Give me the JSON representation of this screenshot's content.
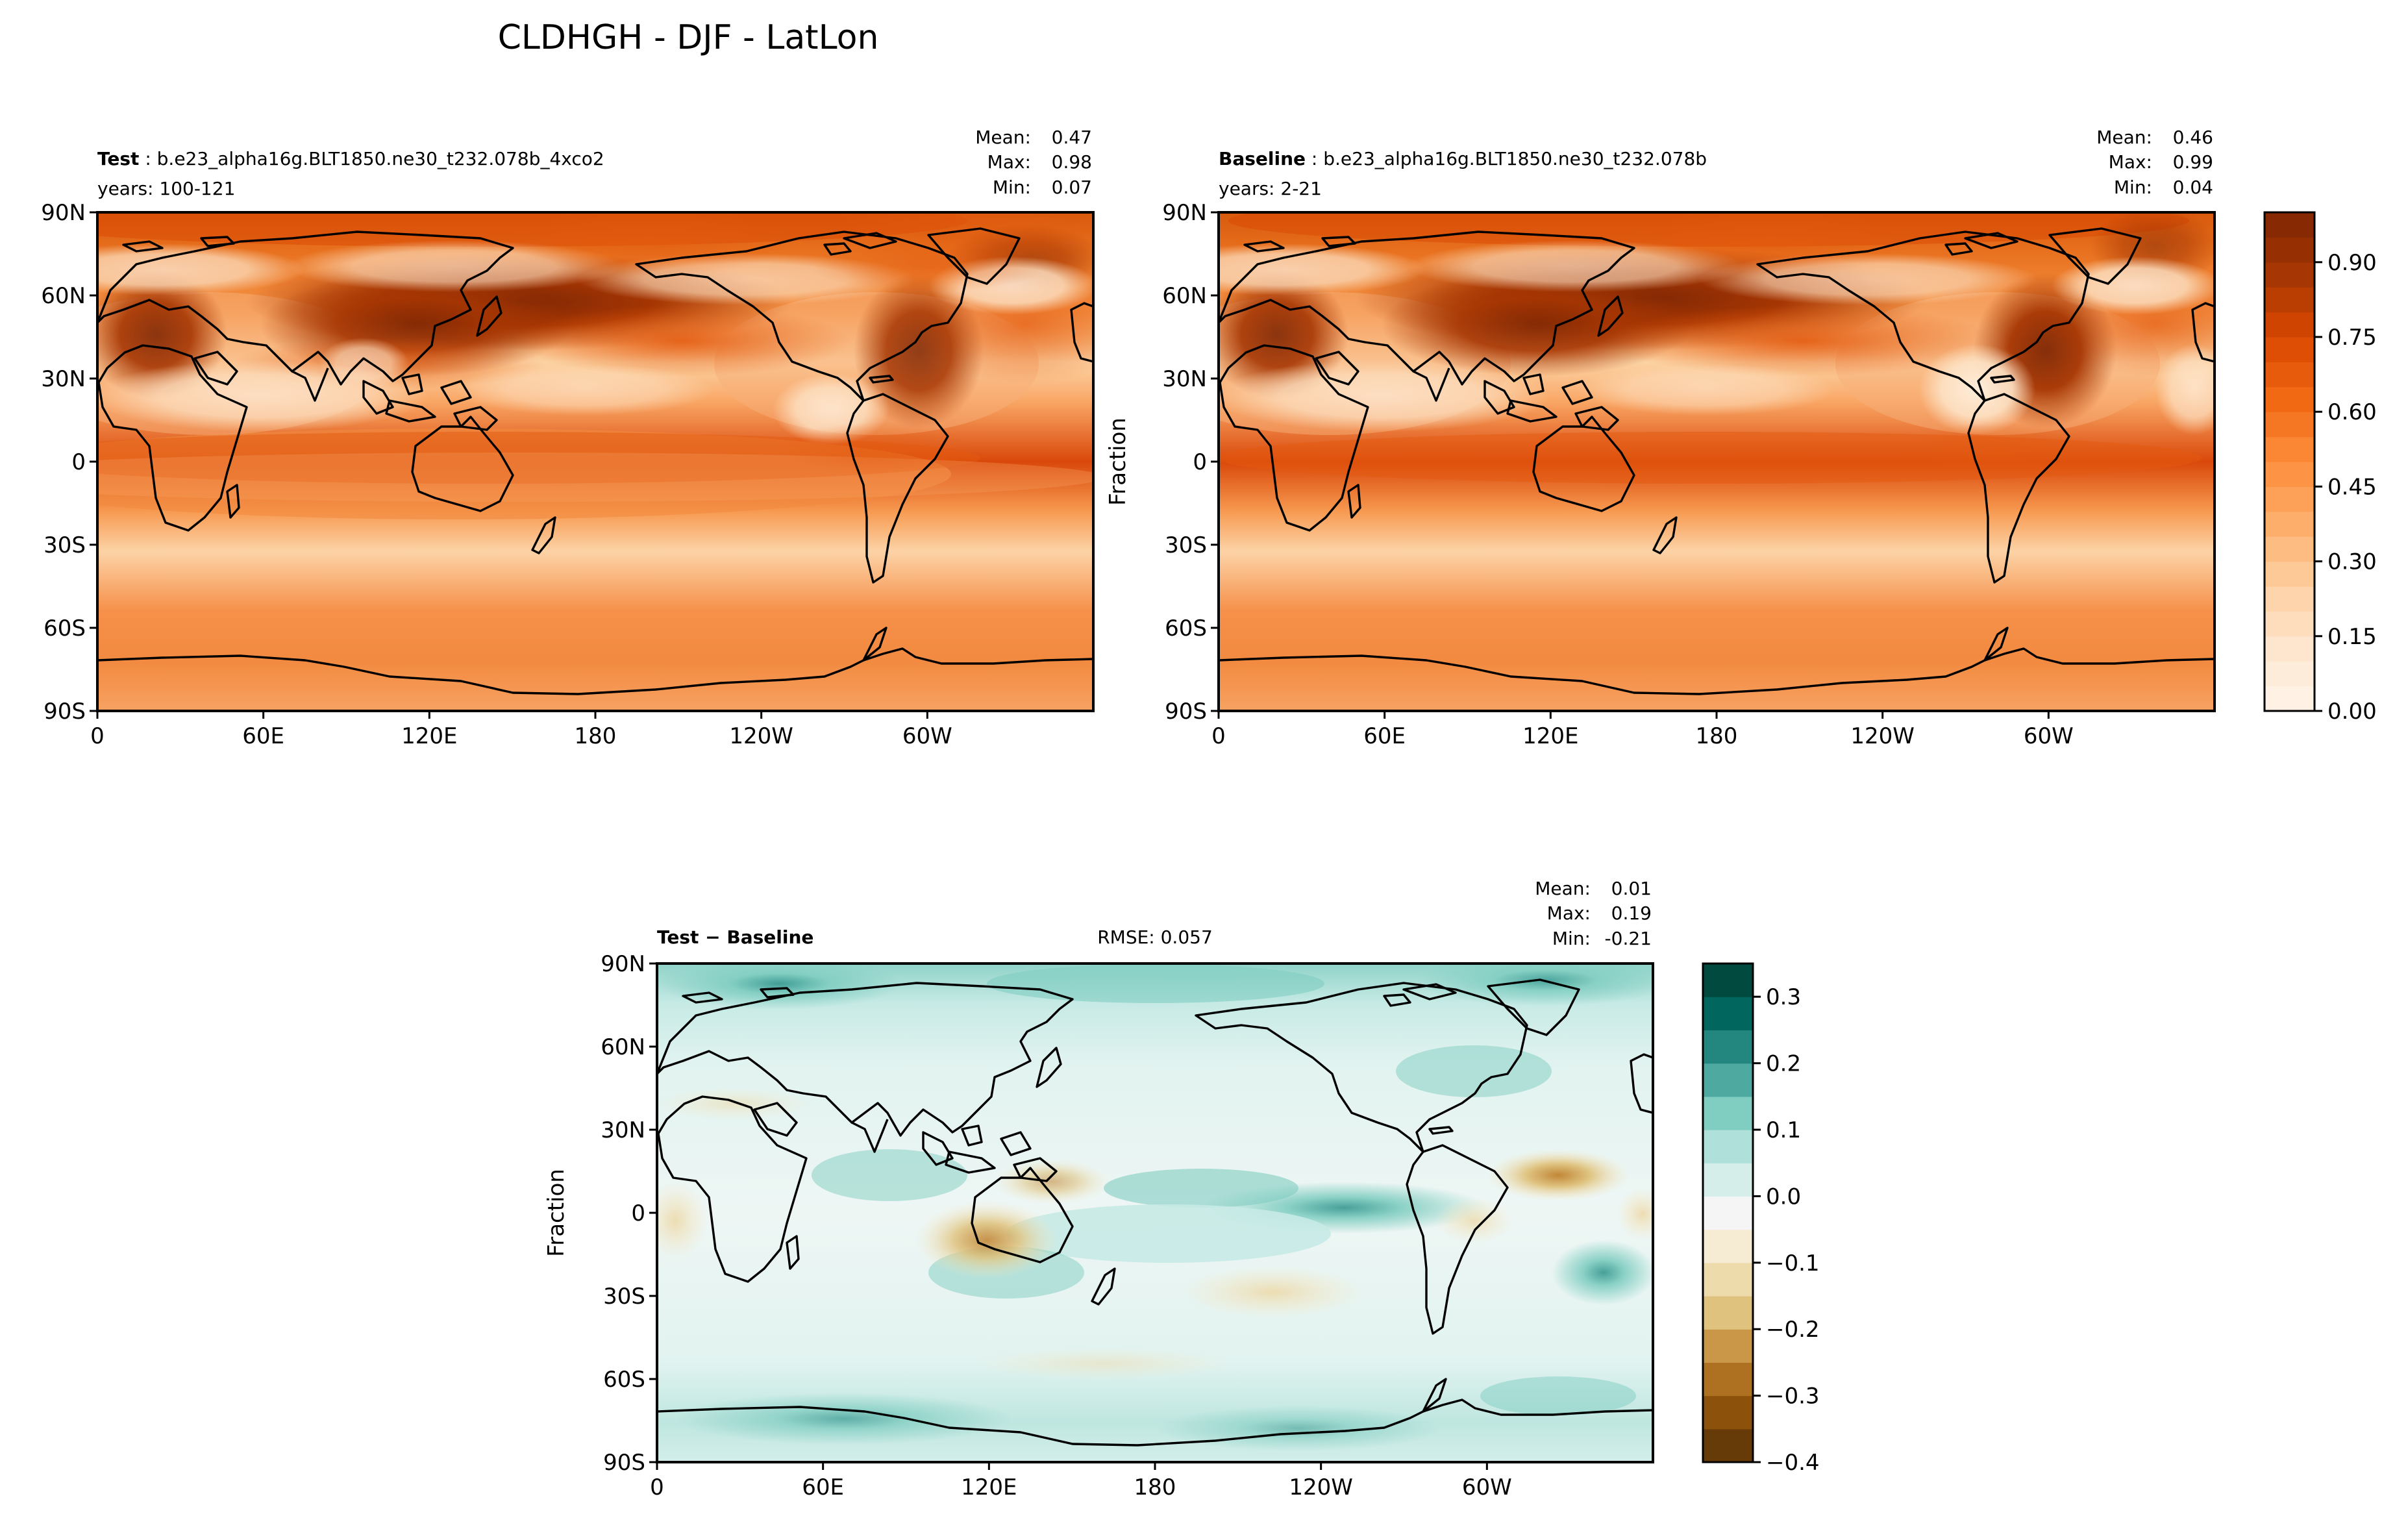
{
  "figure_title": "CLDHGH - DJF - LatLon",
  "chart_data": [
    {
      "type": "heatmap",
      "panel": "test",
      "label_bold": "Test",
      "label_rest": " : b.e23_alpha16g.BLT1850.ne30_t232.078b_4xco2",
      "subtitle": "years: 100-121",
      "stats": {
        "mean_label": "Mean:",
        "mean": "0.47",
        "max_label": "Max:",
        "max": "0.98",
        "min_label": "Min:",
        "min": "0.07"
      },
      "ylabel": "",
      "xticks": [
        "0",
        "60E",
        "120E",
        "180",
        "120W",
        "60W"
      ],
      "yticks": [
        "90N",
        "60N",
        "30N",
        "0",
        "30S",
        "60S",
        "90S"
      ],
      "value_range": [
        0.0,
        1.0
      ]
    },
    {
      "type": "heatmap",
      "panel": "baseline",
      "label_bold": "Baseline",
      "label_rest": " : b.e23_alpha16g.BLT1850.ne30_t232.078b",
      "subtitle": "years: 2-21",
      "stats": {
        "mean_label": "Mean:",
        "mean": "0.46",
        "max_label": "Max:",
        "max": "0.99",
        "min_label": "Min:",
        "min": "0.04"
      },
      "ylabel": "Fraction",
      "xticks": [
        "0",
        "60E",
        "120E",
        "180",
        "120W",
        "60W"
      ],
      "yticks": [
        "90N",
        "60N",
        "30N",
        "0",
        "30S",
        "60S",
        "90S"
      ],
      "colorbar": {
        "ticks": [
          "0.00",
          "0.15",
          "0.30",
          "0.45",
          "0.60",
          "0.75",
          "0.90"
        ],
        "range": [
          0.0,
          1.0
        ],
        "levels": 20,
        "colors": [
          "#fff5eb",
          "#fee6ce",
          "#fdd0a2",
          "#fdae6b",
          "#fd8d3c",
          "#f16913",
          "#d94801",
          "#a63603",
          "#7f2704"
        ]
      }
    },
    {
      "type": "heatmap",
      "panel": "difference",
      "label_bold": "Test − Baseline",
      "rmse": "RMSE: 0.057",
      "stats": {
        "mean_label": "Mean:",
        "mean": "0.01",
        "max_label": "Max:",
        "max": "0.19",
        "min_label": "Min:",
        "min": "-0.21"
      },
      "ylabel": "Fraction",
      "xticks": [
        "0",
        "60E",
        "120E",
        "180",
        "120W",
        "60W"
      ],
      "yticks": [
        "90N",
        "60N",
        "30N",
        "0",
        "30S",
        "60S",
        "90S"
      ],
      "colorbar": {
        "ticks": [
          "0.3",
          "0.2",
          "0.1",
          "0.0",
          "−0.1",
          "−0.2",
          "−0.3",
          "−0.4"
        ],
        "range": [
          -0.4,
          0.35
        ],
        "levels": 15,
        "colors": [
          "#543005",
          "#8c510a",
          "#bf812d",
          "#dfc27d",
          "#f6e8c3",
          "#f5f5f5",
          "#c7eae5",
          "#80cdc1",
          "#35978f",
          "#01665e",
          "#003c30"
        ]
      }
    }
  ]
}
